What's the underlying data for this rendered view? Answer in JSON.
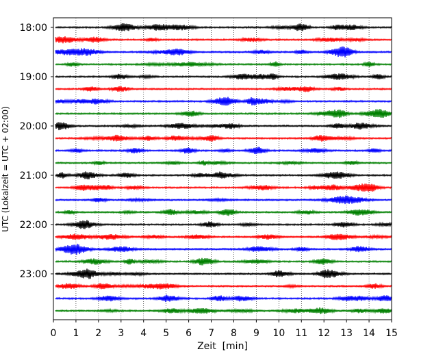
{
  "chart_data": {
    "type": "line",
    "xlabel": "Zeit  [min]",
    "ylabel": "UTC (Lokalzeit = UTC + 02:00)",
    "xlim": [
      0,
      15
    ],
    "x_ticks": [
      "0",
      "1",
      "2",
      "3",
      "4",
      "5",
      "6",
      "7",
      "8",
      "9",
      "10",
      "11",
      "12",
      "13",
      "14",
      "15"
    ],
    "y_ticks": [
      "18:00",
      "19:00",
      "20:00",
      "21:00",
      "22:00",
      "23:00"
    ],
    "grid": "vertical dotted lines at each minute",
    "trace_interval_minutes": 15,
    "start_time": "18:00",
    "trace_count": 24,
    "trace_colors": [
      "#000000",
      "#ff0000",
      "#0000ff",
      "#008000"
    ]
  }
}
